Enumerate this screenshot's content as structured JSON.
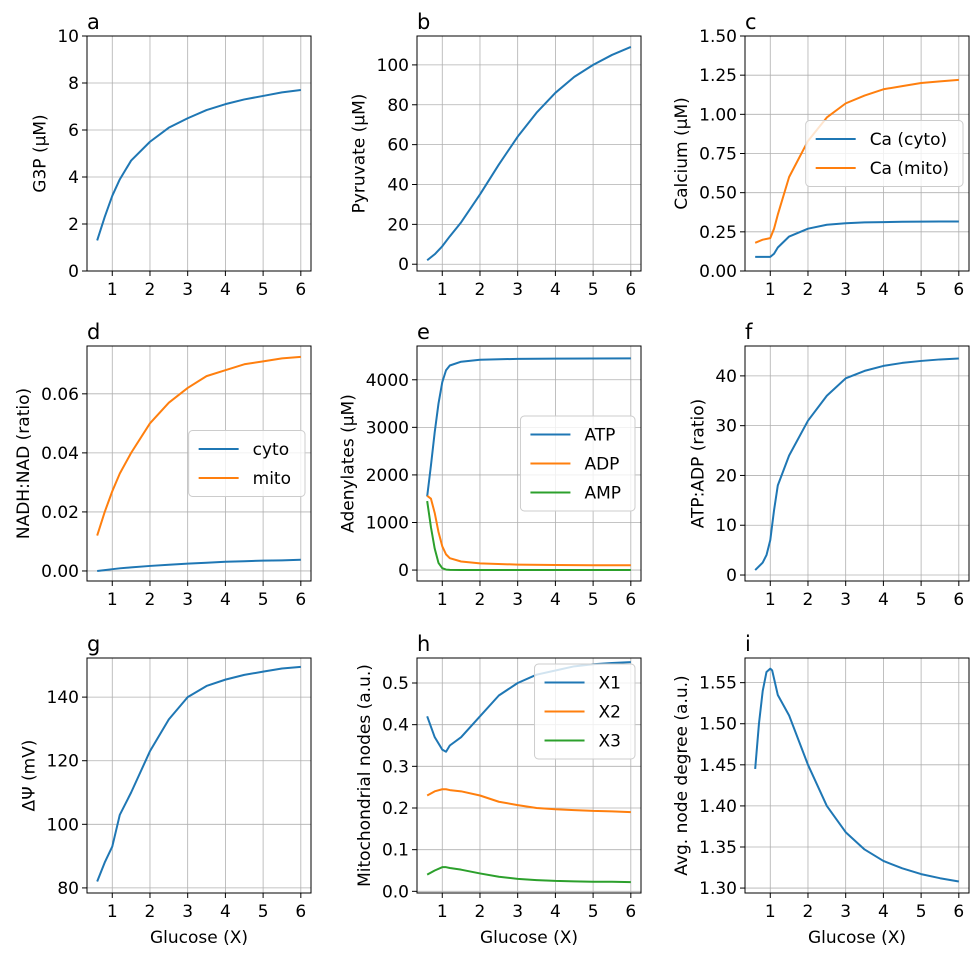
{
  "chart_data": [
    {
      "type": "line",
      "title": "a",
      "ylabel": "G3P (μM)",
      "x": [
        0.6,
        0.8,
        1,
        1.2,
        1.5,
        2,
        2.5,
        3,
        3.5,
        4,
        4.5,
        5,
        5.5,
        6
      ],
      "series": [
        {
          "name": null,
          "color": "#1f77b4",
          "values": [
            1.3,
            2.3,
            3.2,
            3.9,
            4.7,
            5.5,
            6.1,
            6.5,
            6.85,
            7.1,
            7.3,
            7.45,
            7.6,
            7.7
          ]
        }
      ],
      "xlim": [
        0.33,
        6.27
      ],
      "ylim": [
        0,
        10
      ],
      "xticks": [
        1,
        2,
        3,
        4,
        5,
        6
      ],
      "yticks": [
        0,
        2,
        4,
        6,
        8,
        10
      ],
      "grid": true
    },
    {
      "type": "line",
      "title": "b",
      "ylabel": "Pyruvate (μM)",
      "x": [
        0.6,
        0.8,
        1,
        1.2,
        1.5,
        2,
        2.5,
        3,
        3.5,
        4,
        4.5,
        5,
        5.5,
        6
      ],
      "series": [
        {
          "name": null,
          "color": "#1f77b4",
          "values": [
            2,
            5,
            9,
            14,
            21,
            35,
            50,
            64,
            76,
            86,
            94,
            100,
            105,
            109
          ]
        }
      ],
      "xlim": [
        0.33,
        6.27
      ],
      "ylim": [
        -3.4,
        114.5
      ],
      "xticks": [
        1,
        2,
        3,
        4,
        5,
        6
      ],
      "yticks": [
        0,
        20,
        40,
        60,
        80,
        100
      ],
      "grid": true
    },
    {
      "type": "line",
      "title": "c",
      "ylabel": "Calcium (μM)",
      "x": [
        0.6,
        0.8,
        1,
        1.1,
        1.2,
        1.5,
        2,
        2.5,
        3,
        3.5,
        4,
        4.5,
        5,
        5.5,
        6
      ],
      "series": [
        {
          "name": "Ca (cyto)",
          "color": "#1f77b4",
          "values": [
            0.09,
            0.09,
            0.09,
            0.11,
            0.15,
            0.22,
            0.27,
            0.295,
            0.305,
            0.31,
            0.312,
            0.314,
            0.315,
            0.316,
            0.316
          ]
        },
        {
          "name": "Ca (mito)",
          "color": "#ff7f0e",
          "values": [
            0.18,
            0.2,
            0.21,
            0.27,
            0.36,
            0.6,
            0.83,
            0.98,
            1.07,
            1.12,
            1.16,
            1.18,
            1.2,
            1.21,
            1.22
          ]
        }
      ],
      "xlim": [
        0.33,
        6.27
      ],
      "ylim": [
        0,
        1.5
      ],
      "xticks": [
        1,
        2,
        3,
        4,
        5,
        6
      ],
      "yticks": [
        {
          "value": 0,
          "label": "0.00"
        },
        {
          "value": 0.25,
          "label": "0.25"
        },
        {
          "value": 0.5,
          "label": "0.50"
        },
        {
          "value": 0.75,
          "label": "0.75"
        },
        {
          "value": 1,
          "label": "1.00"
        },
        {
          "value": 1.25,
          "label": "1.25"
        },
        {
          "value": 1.5,
          "label": "1.50"
        }
      ],
      "grid": true,
      "legend": "center-right"
    },
    {
      "type": "line",
      "title": "d",
      "ylabel": "NADH:NAD (ratio)",
      "x": [
        0.6,
        0.8,
        1,
        1.2,
        1.5,
        2,
        2.5,
        3,
        3.5,
        4,
        4.5,
        5,
        5.5,
        6
      ],
      "series": [
        {
          "name": "cyto",
          "color": "#1f77b4",
          "values": [
            0,
            0.0003,
            0.0006,
            0.0009,
            0.0012,
            0.0017,
            0.0021,
            0.0025,
            0.0028,
            0.0031,
            0.0033,
            0.0035,
            0.0036,
            0.0038
          ]
        },
        {
          "name": "mito",
          "color": "#ff7f0e",
          "values": [
            0.012,
            0.02,
            0.027,
            0.033,
            0.04,
            0.05,
            0.057,
            0.062,
            0.066,
            0.068,
            0.07,
            0.071,
            0.072,
            0.0725
          ]
        }
      ],
      "xlim": [
        0.33,
        6.27
      ],
      "ylim": [
        -0.0034,
        0.0762
      ],
      "xticks": [
        1,
        2,
        3,
        4,
        5,
        6
      ],
      "yticks": [
        {
          "value": 0,
          "label": "0.00"
        },
        {
          "value": 0.02,
          "label": "0.02"
        },
        {
          "value": 0.04,
          "label": "0.04"
        },
        {
          "value": 0.06,
          "label": "0.06"
        }
      ],
      "grid": true,
      "legend": "center-right"
    },
    {
      "type": "line",
      "title": "e",
      "ylabel": "Adenylates (μM)",
      "x": [
        0.6,
        0.7,
        0.8,
        0.9,
        1,
        1.1,
        1.2,
        1.5,
        2,
        3,
        4,
        5,
        6
      ],
      "series": [
        {
          "name": "ATP",
          "color": "#1f77b4",
          "values": [
            1550,
            2200,
            2900,
            3500,
            3950,
            4200,
            4300,
            4380,
            4420,
            4440,
            4445,
            4448,
            4450
          ]
        },
        {
          "name": "ADP",
          "color": "#ff7f0e",
          "values": [
            1560,
            1500,
            1200,
            800,
            500,
            330,
            250,
            180,
            140,
            115,
            105,
            100,
            100
          ]
        },
        {
          "name": "AMP",
          "color": "#2ca02c",
          "values": [
            1450,
            900,
            450,
            150,
            40,
            10,
            5,
            2,
            1,
            0,
            0,
            0,
            0
          ]
        }
      ],
      "xlim": [
        0.33,
        6.27
      ],
      "ylim": [
        -230,
        4710
      ],
      "xticks": [
        1,
        2,
        3,
        4,
        5,
        6
      ],
      "yticks": [
        0,
        1000,
        2000,
        3000,
        4000
      ],
      "grid": true,
      "legend": "center-right"
    },
    {
      "type": "line",
      "title": "f",
      "ylabel": "ATP:ADP (ratio)",
      "x": [
        0.6,
        0.8,
        0.9,
        1,
        1.1,
        1.2,
        1.5,
        2,
        2.5,
        3,
        3.5,
        4,
        4.5,
        5,
        5.5,
        6
      ],
      "series": [
        {
          "name": null,
          "color": "#1f77b4",
          "values": [
            1,
            2.5,
            4,
            7,
            13,
            18,
            24,
            31,
            36,
            39.5,
            41,
            42,
            42.6,
            43,
            43.3,
            43.5
          ]
        }
      ],
      "xlim": [
        0.33,
        6.27
      ],
      "ylim": [
        -1.2,
        46
      ],
      "xticks": [
        1,
        2,
        3,
        4,
        5,
        6
      ],
      "yticks": [
        0,
        10,
        20,
        30,
        40
      ],
      "grid": true
    },
    {
      "type": "line",
      "title": "g",
      "ylabel": "ΔΨ (mV)",
      "xlabel": "Glucose (X)",
      "x": [
        0.6,
        0.8,
        1,
        1.1,
        1.2,
        1.5,
        2,
        2.5,
        3,
        3.5,
        4,
        4.5,
        5,
        5.5,
        6
      ],
      "series": [
        {
          "name": null,
          "color": "#1f77b4",
          "values": [
            82,
            88,
            93,
            98,
            103,
            110,
            123,
            133,
            140,
            143.5,
            145.5,
            147,
            148,
            149,
            149.5
          ]
        }
      ],
      "xlim": [
        0.33,
        6.27
      ],
      "ylim": [
        78.4,
        152.3
      ],
      "xticks": [
        1,
        2,
        3,
        4,
        5,
        6
      ],
      "yticks": [
        80,
        100,
        120,
        140
      ],
      "grid": true
    },
    {
      "type": "line",
      "title": "h",
      "ylabel": "Mitochondrial nodes (a.u.)",
      "xlabel": "Glucose (X)",
      "x": [
        0.6,
        0.8,
        1,
        1.1,
        1.2,
        1.5,
        2,
        2.5,
        3,
        3.5,
        4,
        4.5,
        5,
        5.5,
        6
      ],
      "series": [
        {
          "name": "X1",
          "color": "#1f77b4",
          "values": [
            0.42,
            0.37,
            0.34,
            0.335,
            0.35,
            0.37,
            0.42,
            0.47,
            0.5,
            0.52,
            0.53,
            0.54,
            0.545,
            0.548,
            0.55
          ]
        },
        {
          "name": "X2",
          "color": "#ff7f0e",
          "values": [
            0.23,
            0.24,
            0.245,
            0.245,
            0.243,
            0.24,
            0.23,
            0.215,
            0.207,
            0.2,
            0.197,
            0.195,
            0.193,
            0.192,
            0.19
          ]
        },
        {
          "name": "X3",
          "color": "#2ca02c",
          "values": [
            0.04,
            0.05,
            0.058,
            0.058,
            0.056,
            0.052,
            0.043,
            0.035,
            0.03,
            0.027,
            0.025,
            0.024,
            0.023,
            0.023,
            0.022
          ]
        }
      ],
      "xlim": [
        0.33,
        6.27
      ],
      "ylim": [
        -0.004,
        0.56
      ],
      "xticks": [
        1,
        2,
        3,
        4,
        5,
        6
      ],
      "yticks": [
        {
          "value": 0,
          "label": "0.0"
        },
        {
          "value": 0.1,
          "label": "0.1"
        },
        {
          "value": 0.2,
          "label": "0.2"
        },
        {
          "value": 0.3,
          "label": "0.3"
        },
        {
          "value": 0.4,
          "label": "0.4"
        },
        {
          "value": 0.5,
          "label": "0.5"
        }
      ],
      "grid": true,
      "legend": "upper-right"
    },
    {
      "type": "line",
      "title": "i",
      "ylabel": "Avg. node degree (a.u.)",
      "xlabel": "Glucose (X)",
      "x": [
        0.6,
        0.7,
        0.8,
        0.9,
        1,
        1.05,
        1.1,
        1.2,
        1.5,
        2,
        2.5,
        3,
        3.5,
        4,
        4.5,
        5,
        5.5,
        6
      ],
      "series": [
        {
          "name": null,
          "color": "#1f77b4",
          "values": [
            1.445,
            1.5,
            1.54,
            1.563,
            1.567,
            1.565,
            1.555,
            1.535,
            1.51,
            1.45,
            1.4,
            1.368,
            1.347,
            1.333,
            1.324,
            1.317,
            1.312,
            1.308
          ]
        }
      ],
      "xlim": [
        0.33,
        6.27
      ],
      "ylim": [
        1.294,
        1.58
      ],
      "xticks": [
        1,
        2,
        3,
        4,
        5,
        6
      ],
      "yticks": [
        {
          "value": 1.3,
          "label": "1.30"
        },
        {
          "value": 1.35,
          "label": "1.35"
        },
        {
          "value": 1.4,
          "label": "1.40"
        },
        {
          "value": 1.45,
          "label": "1.45"
        },
        {
          "value": 1.5,
          "label": "1.50"
        },
        {
          "value": 1.55,
          "label": "1.55"
        }
      ],
      "grid": true
    }
  ]
}
